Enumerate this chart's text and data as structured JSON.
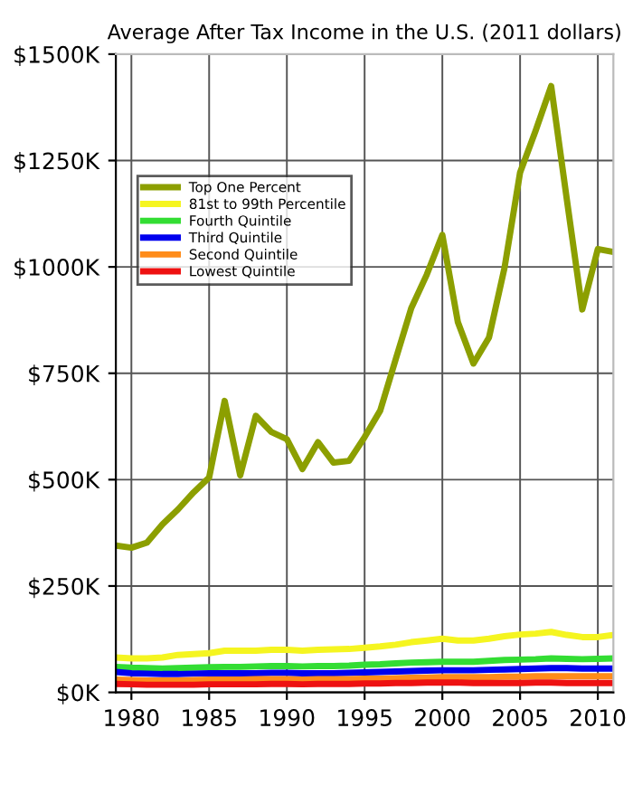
{
  "chart_data": {
    "type": "line",
    "title": "Average After Tax Income in the U.S. (2011 dollars)",
    "x": [
      1979,
      1980,
      1981,
      1982,
      1983,
      1984,
      1985,
      1986,
      1987,
      1988,
      1989,
      1990,
      1991,
      1992,
      1993,
      1994,
      1995,
      1996,
      1997,
      1998,
      1999,
      2000,
      2001,
      2002,
      2003,
      2004,
      2005,
      2006,
      2007,
      2008,
      2009,
      2010,
      2011
    ],
    "series": [
      {
        "name": "Top One Percent",
        "color": "#8c9f00",
        "values": [
          345,
          340,
          352,
          395,
          430,
          470,
          505,
          685,
          510,
          650,
          612,
          595,
          525,
          588,
          540,
          544,
          600,
          662,
          783,
          903,
          982,
          1075,
          870,
          773,
          834,
          998,
          1222,
          1320,
          1425,
          1160,
          900,
          1042,
          1035
        ]
      },
      {
        "name": "81st to 99th Percentile",
        "color": "#f5f520",
        "values": [
          82,
          80,
          80,
          82,
          88,
          90,
          92,
          98,
          98,
          98,
          100,
          100,
          98,
          100,
          101,
          102,
          105,
          108,
          112,
          118,
          122,
          126,
          122,
          122,
          126,
          132,
          136,
          138,
          142,
          135,
          130,
          130,
          135
        ]
      },
      {
        "name": "Fourth Quintile",
        "color": "#33dd33",
        "values": [
          60,
          58,
          57,
          56,
          57,
          58,
          59,
          60,
          60,
          61,
          62,
          62,
          61,
          62,
          62,
          63,
          65,
          66,
          68,
          70,
          71,
          72,
          72,
          72,
          74,
          76,
          77,
          78,
          80,
          79,
          78,
          79,
          80
        ]
      },
      {
        "name": "Third Quintile",
        "color": "#0000ee",
        "values": [
          48,
          45,
          44,
          43,
          43,
          44,
          45,
          45,
          45,
          45,
          46,
          46,
          45,
          45,
          45,
          46,
          47,
          48,
          49,
          50,
          51,
          52,
          52,
          52,
          53,
          54,
          55,
          56,
          57,
          57,
          56,
          56,
          56
        ]
      },
      {
        "name": "Second Quintile",
        "color": "#ff8c1a",
        "values": [
          30,
          29,
          28,
          28,
          28,
          29,
          30,
          30,
          30,
          31,
          31,
          31,
          30,
          31,
          31,
          31,
          32,
          32,
          33,
          34,
          35,
          36,
          36,
          36,
          36,
          37,
          37,
          38,
          38,
          38,
          38,
          38,
          38
        ]
      },
      {
        "name": "Lowest Quintile",
        "color": "#ee1111",
        "values": [
          20,
          19,
          18,
          18,
          18,
          18,
          19,
          19,
          19,
          19,
          20,
          20,
          19,
          20,
          20,
          20,
          21,
          21,
          22,
          22,
          23,
          23,
          23,
          22,
          22,
          22,
          22,
          23,
          23,
          22,
          22,
          22,
          22
        ]
      }
    ],
    "xlim": [
      1979,
      2011
    ],
    "xticks": [
      1980,
      1985,
      1990,
      1995,
      2000,
      2005,
      2010
    ],
    "ylim": [
      0,
      1500
    ],
    "yticks": [
      {
        "value": 0,
        "label": "$0K"
      },
      {
        "value": 250,
        "label": "$250K"
      },
      {
        "value": 500,
        "label": "$500K"
      },
      {
        "value": 750,
        "label": "$750K"
      },
      {
        "value": 1000,
        "label": "$1000K"
      },
      {
        "value": 1250,
        "label": "$1250K"
      },
      {
        "value": 1500,
        "label": "$1500K"
      }
    ],
    "grid": true,
    "legend": "top left",
    "line_style": "solid",
    "marker": "none"
  }
}
